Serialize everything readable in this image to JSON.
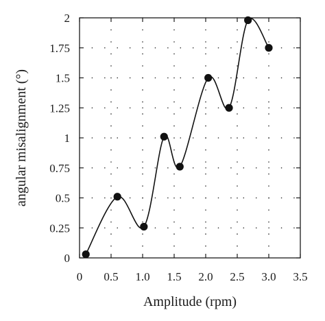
{
  "chart_data": {
    "type": "line",
    "title": "",
    "xlabel": "Amplitude (rpm)",
    "ylabel": "angular misalignment (°)",
    "xlim": [
      0,
      3.5
    ],
    "ylim": [
      0,
      2
    ],
    "xticks": [
      0,
      0.5,
      1.0,
      1.5,
      2.0,
      2.5,
      3.0,
      3.5
    ],
    "xtick_labels": [
      "0",
      "0.5",
      "1.0",
      "1.5",
      "2.0",
      "2.5",
      "3.0",
      "3.5"
    ],
    "yticks": [
      0,
      0.25,
      0.5,
      0.75,
      1,
      1.25,
      1.5,
      1.75,
      2
    ],
    "ytick_labels": [
      "0",
      "0.25",
      "0.5",
      "0.75",
      "1",
      "1.25",
      "1.5",
      "1.75",
      "2"
    ],
    "grid": "dotted",
    "series": [
      {
        "marker": "filled-circle",
        "line": "smooth",
        "color": "#111111",
        "x": [
          0.1,
          0.6,
          1.02,
          1.34,
          1.59,
          2.04,
          2.37,
          2.67,
          3.0
        ],
        "y": [
          0.03,
          0.51,
          0.26,
          1.01,
          0.76,
          1.5,
          1.25,
          1.98,
          1.75
        ]
      }
    ]
  }
}
